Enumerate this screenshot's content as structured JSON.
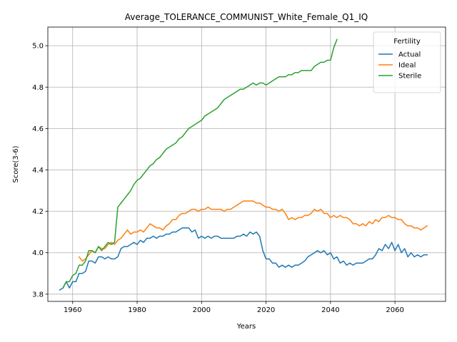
{
  "chart_data": {
    "type": "line",
    "title": "Average_TOLERANCE_COMMUNIST_White_Female_Q1_IQ",
    "xlabel": "Years",
    "ylabel": "Score(3-6)",
    "xlim": [
      1952.3,
      2075.7
    ],
    "ylim": [
      3.765,
      5.09
    ],
    "xticks": [
      1960,
      1980,
      2000,
      2020,
      2040,
      2060
    ],
    "yticks": [
      3.8,
      4.0,
      4.2,
      4.4,
      4.6,
      4.8,
      5.0
    ],
    "grid": true,
    "legend": {
      "title": "Fertility",
      "position": "top-right"
    },
    "series": [
      {
        "name": "Actual",
        "color": "#1f77b4",
        "points": [
          [
            1956,
            3.82
          ],
          [
            1957,
            3.83
          ],
          [
            1958,
            3.86
          ],
          [
            1959,
            3.83
          ],
          [
            1960,
            3.86
          ],
          [
            1961,
            3.86
          ],
          [
            1962,
            3.9
          ],
          [
            1963,
            3.9
          ],
          [
            1964,
            3.91
          ],
          [
            1965,
            3.96
          ],
          [
            1966,
            3.96
          ],
          [
            1967,
            3.95
          ],
          [
            1968,
            3.98
          ],
          [
            1969,
            3.98
          ],
          [
            1970,
            3.97
          ],
          [
            1971,
            3.98
          ],
          [
            1972,
            3.97
          ],
          [
            1973,
            3.97
          ],
          [
            1974,
            3.98
          ],
          [
            1975,
            4.02
          ],
          [
            1976,
            4.03
          ],
          [
            1977,
            4.03
          ],
          [
            1978,
            4.04
          ],
          [
            1979,
            4.05
          ],
          [
            1980,
            4.04
          ],
          [
            1981,
            4.06
          ],
          [
            1982,
            4.05
          ],
          [
            1983,
            4.07
          ],
          [
            1984,
            4.07
          ],
          [
            1985,
            4.08
          ],
          [
            1986,
            4.07
          ],
          [
            1987,
            4.08
          ],
          [
            1988,
            4.08
          ],
          [
            1989,
            4.09
          ],
          [
            1990,
            4.09
          ],
          [
            1991,
            4.1
          ],
          [
            1992,
            4.1
          ],
          [
            1993,
            4.11
          ],
          [
            1994,
            4.12
          ],
          [
            1995,
            4.12
          ],
          [
            1996,
            4.12
          ],
          [
            1997,
            4.1
          ],
          [
            1998,
            4.11
          ],
          [
            1999,
            4.07
          ],
          [
            2000,
            4.08
          ],
          [
            2001,
            4.07
          ],
          [
            2002,
            4.08
          ],
          [
            2003,
            4.07
          ],
          [
            2004,
            4.08
          ],
          [
            2005,
            4.08
          ],
          [
            2006,
            4.07
          ],
          [
            2007,
            4.07
          ],
          [
            2008,
            4.07
          ],
          [
            2009,
            4.07
          ],
          [
            2010,
            4.07
          ],
          [
            2011,
            4.08
          ],
          [
            2012,
            4.08
          ],
          [
            2013,
            4.09
          ],
          [
            2014,
            4.08
          ],
          [
            2015,
            4.1
          ],
          [
            2016,
            4.09
          ],
          [
            2017,
            4.1
          ],
          [
            2018,
            4.08
          ],
          [
            2019,
            4.01
          ],
          [
            2020,
            3.97
          ],
          [
            2021,
            3.97
          ],
          [
            2022,
            3.95
          ],
          [
            2023,
            3.95
          ],
          [
            2024,
            3.93
          ],
          [
            2025,
            3.94
          ],
          [
            2026,
            3.93
          ],
          [
            2027,
            3.94
          ],
          [
            2028,
            3.93
          ],
          [
            2029,
            3.94
          ],
          [
            2030,
            3.94
          ],
          [
            2031,
            3.95
          ],
          [
            2032,
            3.96
          ],
          [
            2033,
            3.98
          ],
          [
            2034,
            3.99
          ],
          [
            2035,
            4.0
          ],
          [
            2036,
            4.01
          ],
          [
            2037,
            4.0
          ],
          [
            2038,
            4.01
          ],
          [
            2039,
            3.99
          ],
          [
            2040,
            4.0
          ],
          [
            2041,
            3.97
          ],
          [
            2042,
            3.98
          ],
          [
            2043,
            3.95
          ],
          [
            2044,
            3.96
          ],
          [
            2045,
            3.94
          ],
          [
            2046,
            3.95
          ],
          [
            2047,
            3.94
          ],
          [
            2048,
            3.95
          ],
          [
            2049,
            3.95
          ],
          [
            2050,
            3.95
          ],
          [
            2051,
            3.96
          ],
          [
            2052,
            3.97
          ],
          [
            2053,
            3.97
          ],
          [
            2054,
            3.99
          ],
          [
            2055,
            4.02
          ],
          [
            2056,
            4.01
          ],
          [
            2057,
            4.04
          ],
          [
            2058,
            4.02
          ],
          [
            2059,
            4.05
          ],
          [
            2060,
            4.01
          ],
          [
            2061,
            4.04
          ],
          [
            2062,
            4.0
          ],
          [
            2063,
            4.02
          ],
          [
            2064,
            3.98
          ],
          [
            2065,
            4.0
          ],
          [
            2066,
            3.98
          ],
          [
            2067,
            3.99
          ],
          [
            2068,
            3.98
          ],
          [
            2069,
            3.99
          ],
          [
            2070,
            3.99
          ]
        ]
      },
      {
        "name": "Ideal",
        "color": "#ff7f0e",
        "points": [
          [
            1962,
            3.98
          ],
          [
            1963,
            3.96
          ],
          [
            1964,
            3.97
          ],
          [
            1965,
            3.99
          ],
          [
            1966,
            4.01
          ],
          [
            1967,
            4.0
          ],
          [
            1968,
            4.03
          ],
          [
            1969,
            4.02
          ],
          [
            1970,
            4.02
          ],
          [
            1971,
            4.04
          ],
          [
            1972,
            4.05
          ],
          [
            1973,
            4.04
          ],
          [
            1974,
            4.06
          ],
          [
            1975,
            4.07
          ],
          [
            1976,
            4.09
          ],
          [
            1977,
            4.11
          ],
          [
            1978,
            4.09
          ],
          [
            1979,
            4.1
          ],
          [
            1980,
            4.1
          ],
          [
            1981,
            4.11
          ],
          [
            1982,
            4.1
          ],
          [
            1983,
            4.12
          ],
          [
            1984,
            4.14
          ],
          [
            1985,
            4.13
          ],
          [
            1986,
            4.12
          ],
          [
            1987,
            4.12
          ],
          [
            1988,
            4.11
          ],
          [
            1989,
            4.13
          ],
          [
            1990,
            4.14
          ],
          [
            1991,
            4.16
          ],
          [
            1992,
            4.16
          ],
          [
            1993,
            4.18
          ],
          [
            1994,
            4.19
          ],
          [
            1995,
            4.19
          ],
          [
            1996,
            4.2
          ],
          [
            1997,
            4.21
          ],
          [
            1998,
            4.21
          ],
          [
            1999,
            4.2
          ],
          [
            2000,
            4.21
          ],
          [
            2001,
            4.21
          ],
          [
            2002,
            4.22
          ],
          [
            2003,
            4.21
          ],
          [
            2004,
            4.21
          ],
          [
            2005,
            4.21
          ],
          [
            2006,
            4.21
          ],
          [
            2007,
            4.2
          ],
          [
            2008,
            4.21
          ],
          [
            2009,
            4.21
          ],
          [
            2010,
            4.22
          ],
          [
            2011,
            4.23
          ],
          [
            2012,
            4.24
          ],
          [
            2013,
            4.25
          ],
          [
            2014,
            4.25
          ],
          [
            2015,
            4.25
          ],
          [
            2016,
            4.25
          ],
          [
            2017,
            4.24
          ],
          [
            2018,
            4.24
          ],
          [
            2019,
            4.23
          ],
          [
            2020,
            4.22
          ],
          [
            2021,
            4.22
          ],
          [
            2022,
            4.21
          ],
          [
            2023,
            4.21
          ],
          [
            2024,
            4.2
          ],
          [
            2025,
            4.21
          ],
          [
            2026,
            4.19
          ],
          [
            2027,
            4.16
          ],
          [
            2028,
            4.17
          ],
          [
            2029,
            4.16
          ],
          [
            2030,
            4.17
          ],
          [
            2031,
            4.17
          ],
          [
            2032,
            4.18
          ],
          [
            2033,
            4.18
          ],
          [
            2034,
            4.19
          ],
          [
            2035,
            4.21
          ],
          [
            2036,
            4.2
          ],
          [
            2037,
            4.21
          ],
          [
            2038,
            4.19
          ],
          [
            2039,
            4.19
          ],
          [
            2040,
            4.17
          ],
          [
            2041,
            4.18
          ],
          [
            2042,
            4.17
          ],
          [
            2043,
            4.18
          ],
          [
            2044,
            4.17
          ],
          [
            2045,
            4.17
          ],
          [
            2046,
            4.16
          ],
          [
            2047,
            4.14
          ],
          [
            2048,
            4.14
          ],
          [
            2049,
            4.13
          ],
          [
            2050,
            4.14
          ],
          [
            2051,
            4.13
          ],
          [
            2052,
            4.15
          ],
          [
            2053,
            4.14
          ],
          [
            2054,
            4.16
          ],
          [
            2055,
            4.15
          ],
          [
            2056,
            4.17
          ],
          [
            2057,
            4.17
          ],
          [
            2058,
            4.18
          ],
          [
            2059,
            4.17
          ],
          [
            2060,
            4.17
          ],
          [
            2061,
            4.16
          ],
          [
            2062,
            4.16
          ],
          [
            2063,
            4.14
          ],
          [
            2064,
            4.13
          ],
          [
            2065,
            4.13
          ],
          [
            2066,
            4.12
          ],
          [
            2067,
            4.12
          ],
          [
            2068,
            4.11
          ],
          [
            2069,
            4.12
          ],
          [
            2070,
            4.13
          ]
        ]
      },
      {
        "name": "Sterile",
        "color": "#2ca02c",
        "points": [
          [
            1957,
            3.83
          ],
          [
            1958,
            3.86
          ],
          [
            1959,
            3.86
          ],
          [
            1960,
            3.89
          ],
          [
            1961,
            3.9
          ],
          [
            1962,
            3.94
          ],
          [
            1963,
            3.94
          ],
          [
            1964,
            3.96
          ],
          [
            1965,
            4.01
          ],
          [
            1966,
            4.01
          ],
          [
            1967,
            4.0
          ],
          [
            1968,
            4.03
          ],
          [
            1969,
            4.01
          ],
          [
            1970,
            4.03
          ],
          [
            1971,
            4.05
          ],
          [
            1972,
            4.04
          ],
          [
            1973,
            4.05
          ],
          [
            1974,
            4.22
          ],
          [
            1975,
            4.24
          ],
          [
            1976,
            4.26
          ],
          [
            1977,
            4.28
          ],
          [
            1978,
            4.3
          ],
          [
            1979,
            4.33
          ],
          [
            1980,
            4.35
          ],
          [
            1981,
            4.36
          ],
          [
            1982,
            4.38
          ],
          [
            1983,
            4.4
          ],
          [
            1984,
            4.42
          ],
          [
            1985,
            4.43
          ],
          [
            1986,
            4.45
          ],
          [
            1987,
            4.46
          ],
          [
            1988,
            4.48
          ],
          [
            1989,
            4.5
          ],
          [
            1990,
            4.51
          ],
          [
            1991,
            4.52
          ],
          [
            1992,
            4.53
          ],
          [
            1993,
            4.55
          ],
          [
            1994,
            4.56
          ],
          [
            1995,
            4.58
          ],
          [
            1996,
            4.6
          ],
          [
            1997,
            4.61
          ],
          [
            1998,
            4.62
          ],
          [
            1999,
            4.63
          ],
          [
            2000,
            4.64
          ],
          [
            2001,
            4.66
          ],
          [
            2002,
            4.67
          ],
          [
            2003,
            4.68
          ],
          [
            2004,
            4.69
          ],
          [
            2005,
            4.7
          ],
          [
            2006,
            4.72
          ],
          [
            2007,
            4.74
          ],
          [
            2008,
            4.75
          ],
          [
            2009,
            4.76
          ],
          [
            2010,
            4.77
          ],
          [
            2011,
            4.78
          ],
          [
            2012,
            4.79
          ],
          [
            2013,
            4.79
          ],
          [
            2014,
            4.8
          ],
          [
            2015,
            4.81
          ],
          [
            2016,
            4.82
          ],
          [
            2017,
            4.81
          ],
          [
            2018,
            4.82
          ],
          [
            2019,
            4.82
          ],
          [
            2020,
            4.81
          ],
          [
            2021,
            4.82
          ],
          [
            2022,
            4.83
          ],
          [
            2023,
            4.84
          ],
          [
            2024,
            4.85
          ],
          [
            2025,
            4.85
          ],
          [
            2026,
            4.85
          ],
          [
            2027,
            4.86
          ],
          [
            2028,
            4.86
          ],
          [
            2029,
            4.87
          ],
          [
            2030,
            4.87
          ],
          [
            2031,
            4.88
          ],
          [
            2032,
            4.88
          ],
          [
            2033,
            4.88
          ],
          [
            2034,
            4.88
          ],
          [
            2035,
            4.9
          ],
          [
            2036,
            4.91
          ],
          [
            2037,
            4.92
          ],
          [
            2038,
            4.92
          ],
          [
            2039,
            4.93
          ],
          [
            2040,
            4.93
          ],
          [
            2041,
            4.99
          ],
          [
            2042,
            5.03
          ]
        ]
      }
    ]
  }
}
